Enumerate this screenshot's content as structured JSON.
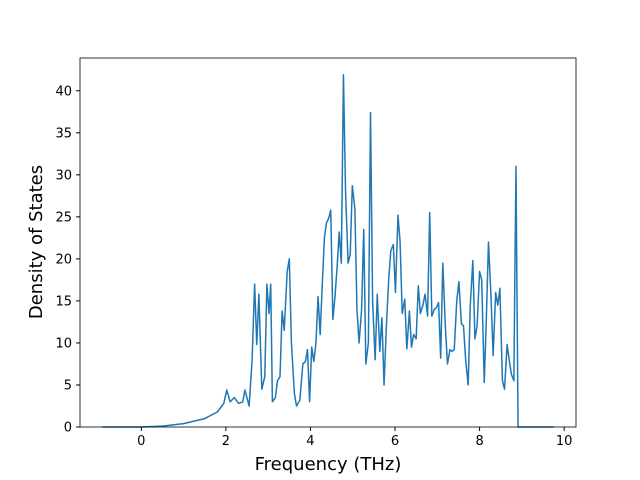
{
  "chart_data": {
    "type": "line",
    "x_label": "Frequency (THz)",
    "y_label": "Density of States",
    "x": [
      -0.92,
      0,
      0.5,
      1.0,
      1.5,
      1.8,
      1.95,
      2.02,
      2.1,
      2.2,
      2.3,
      2.4,
      2.45,
      2.55,
      2.62,
      2.68,
      2.73,
      2.78,
      2.85,
      2.92,
      2.97,
      3.02,
      3.06,
      3.1,
      3.17,
      3.22,
      3.28,
      3.33,
      3.38,
      3.45,
      3.5,
      3.55,
      3.62,
      3.67,
      3.75,
      3.82,
      3.88,
      3.93,
      3.98,
      4.03,
      4.08,
      4.13,
      4.18,
      4.23,
      4.28,
      4.33,
      4.38,
      4.43,
      4.48,
      4.53,
      4.58,
      4.63,
      4.68,
      4.73,
      4.78,
      4.83,
      4.89,
      4.94,
      4.99,
      5.05,
      5.1,
      5.15,
      5.21,
      5.26,
      5.31,
      5.37,
      5.42,
      5.47,
      5.53,
      5.58,
      5.64,
      5.69,
      5.74,
      5.8,
      5.85,
      5.9,
      5.96,
      6.01,
      6.07,
      6.12,
      6.17,
      6.23,
      6.28,
      6.34,
      6.39,
      6.44,
      6.5,
      6.55,
      6.6,
      6.66,
      6.71,
      6.77,
      6.82,
      6.87,
      6.93,
      6.98,
      7.03,
      7.08,
      7.13,
      7.19,
      7.24,
      7.3,
      7.35,
      7.4,
      7.46,
      7.51,
      7.57,
      7.62,
      7.67,
      7.73,
      7.78,
      7.84,
      7.89,
      7.94,
      8.0,
      8.05,
      8.11,
      8.16,
      8.21,
      8.27,
      8.32,
      8.38,
      8.43,
      8.48,
      8.54,
      8.59,
      8.65,
      8.7,
      8.75,
      8.81,
      8.86,
      8.91,
      9.75
    ],
    "series": [
      {
        "name": "DOS",
        "color": "#1f77b4",
        "values": [
          0,
          0,
          0.1,
          0.4,
          1.0,
          1.8,
          2.8,
          4.4,
          3.0,
          3.5,
          2.8,
          3.0,
          4.4,
          2.5,
          8,
          17,
          9.8,
          15.8,
          4.5,
          6,
          17,
          13.5,
          17,
          3,
          3.5,
          5.5,
          6,
          13.8,
          11.5,
          18.5,
          20,
          10,
          4,
          2.5,
          3.2,
          7.5,
          7.8,
          9.2,
          3,
          9.5,
          7.8,
          10,
          15.5,
          11,
          17,
          22.5,
          24.3,
          24.8,
          25.8,
          12.8,
          15.5,
          19,
          23.2,
          19.5,
          41.9,
          28,
          19.5,
          20.5,
          28.7,
          26,
          14,
          10,
          14,
          23.5,
          7.5,
          10,
          37.4,
          15,
          8,
          15.8,
          9,
          13,
          5,
          12.5,
          17.5,
          21,
          21.7,
          16,
          25.2,
          22,
          13.5,
          15.2,
          9.3,
          13.8,
          9.5,
          11,
          10.5,
          16.8,
          13.5,
          14.5,
          15.8,
          13.2,
          25.5,
          13.2,
          14,
          14.2,
          14.8,
          8.2,
          19.5,
          12,
          7.5,
          9.2,
          9,
          9.2,
          15,
          17.3,
          12.3,
          12,
          8,
          5,
          14.5,
          19.8,
          10.5,
          12,
          18.5,
          17.5,
          5.3,
          13,
          22,
          15.5,
          8.5,
          16,
          14.5,
          16.5,
          5.5,
          4.5,
          9.8,
          8,
          6.3,
          5.5,
          31,
          0,
          0
        ]
      }
    ],
    "xlim": [
      -1.45,
      10.28
    ],
    "xticks": [
      0,
      2,
      4,
      6,
      8,
      10
    ],
    "ylim": [
      0,
      43.9
    ],
    "yticks": [
      0,
      5,
      10,
      15,
      20,
      25,
      30,
      35,
      40
    ]
  }
}
